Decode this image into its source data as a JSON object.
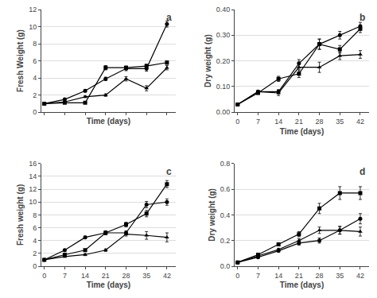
{
  "chart_data": [
    {
      "type": "line",
      "xlabel": "Time (days)",
      "ylabel": "Fresh Weight (g)",
      "x": [
        0,
        7,
        14,
        21,
        28,
        35,
        42
      ],
      "series": [
        {
          "marker": "circle",
          "color": "black",
          "values": [
            1.0,
            1.5,
            2.5,
            3.9,
            5.1,
            5.1,
            10.3
          ],
          "error": [
            0.05,
            0.1,
            0.15,
            0.2,
            0.25,
            0.3,
            0.35
          ]
        },
        {
          "marker": "square",
          "color": "black",
          "values": [
            1.0,
            1.1,
            1.1,
            5.2,
            5.2,
            5.4,
            5.8
          ],
          "error": [
            0.05,
            0.08,
            0.1,
            0.25,
            0.2,
            0.2,
            0.2
          ]
        },
        {
          "marker": "triangle",
          "color": "black",
          "values": [
            1.0,
            1.2,
            1.8,
            2.0,
            3.9,
            2.8,
            5.2
          ],
          "error": [
            0.05,
            0.08,
            0.1,
            0.15,
            0.25,
            0.3,
            0.25
          ]
        }
      ],
      "xlim": [
        -1,
        45
      ],
      "xticks": [
        0,
        7,
        14,
        21,
        28,
        35,
        42
      ],
      "ylim": [
        0,
        12
      ],
      "yticks": [
        0,
        2,
        4,
        6,
        8,
        10,
        12
      ],
      "tick_labels": "y",
      "grid": "y",
      "annotations": [
        {
          "text": "a"
        }
      ]
    },
    {
      "type": "line",
      "xlabel": "Time (days)",
      "ylabel": "Dry weight (g)",
      "x": [
        0,
        7,
        14,
        21,
        28,
        35,
        42
      ],
      "series": [
        {
          "marker": "circle",
          "color": "black",
          "values": [
            0.03,
            0.08,
            0.08,
            0.19,
            0.265,
            0.3,
            0.335
          ],
          "error": [
            0.003,
            0.005,
            0.008,
            0.015,
            0.02,
            0.015,
            0.015
          ]
        },
        {
          "marker": "square",
          "color": "black",
          "values": [
            0.03,
            0.075,
            0.13,
            0.15,
            0.265,
            0.245,
            0.325
          ],
          "error": [
            0.003,
            0.005,
            0.01,
            0.015,
            0.02,
            0.015,
            0.015
          ]
        },
        {
          "marker": "triangle",
          "color": "black",
          "values": [
            0.03,
            0.08,
            0.075,
            0.175,
            0.175,
            0.22,
            0.225
          ],
          "error": [
            0.003,
            0.005,
            0.01,
            0.02,
            0.02,
            0.015,
            0.015
          ]
        }
      ],
      "xlim": [
        -1,
        45
      ],
      "xticks": [
        0,
        7,
        14,
        21,
        28,
        35,
        42
      ],
      "ylim": [
        0.0,
        0.4
      ],
      "yticks": [
        {
          "value": 0.0,
          "label": "0.00"
        },
        {
          "value": 0.1,
          "label": "0.10"
        },
        {
          "value": 0.2,
          "label": "0.20"
        },
        {
          "value": 0.3,
          "label": "0.30"
        },
        {
          "value": 0.4,
          "label": "0.40"
        }
      ],
      "grid": "y",
      "annotations": [
        {
          "text": "b"
        }
      ]
    },
    {
      "type": "line",
      "xlabel": "Time (days)",
      "ylabel": "Fresh weight (g)",
      "x": [
        0,
        7,
        14,
        21,
        28,
        35,
        42
      ],
      "series": [
        {
          "marker": "circle",
          "color": "black",
          "values": [
            1.0,
            2.5,
            4.5,
            5.2,
            5.2,
            9.6,
            10.0
          ],
          "error": [
            0.05,
            0.15,
            0.2,
            0.25,
            0.3,
            0.5,
            0.5
          ]
        },
        {
          "marker": "square",
          "color": "black",
          "values": [
            1.0,
            1.8,
            2.5,
            5.2,
            6.5,
            8.2,
            12.8
          ],
          "error": [
            0.05,
            0.1,
            0.15,
            0.3,
            0.35,
            0.5,
            0.55
          ]
        },
        {
          "marker": "triangle",
          "color": "black",
          "values": [
            1.0,
            1.5,
            1.8,
            2.5,
            5.0,
            4.8,
            4.5
          ],
          "error": [
            0.05,
            0.1,
            0.15,
            0.2,
            0.3,
            0.6,
            0.7
          ]
        }
      ],
      "xlim": [
        -1,
        45
      ],
      "xticks": [
        0,
        7,
        14,
        21,
        28,
        35,
        42
      ],
      "ylim": [
        0,
        16
      ],
      "yticks": [
        0,
        2,
        4,
        6,
        8,
        10,
        12,
        14,
        16
      ],
      "grid": "y",
      "annotations": [
        {
          "text": "c"
        }
      ]
    },
    {
      "type": "line",
      "xlabel": "Time (days)",
      "ylabel": "Dry weight (g)",
      "x": [
        0,
        7,
        14,
        21,
        28,
        35,
        42
      ],
      "series": [
        {
          "marker": "circle",
          "color": "black",
          "values": [
            0.03,
            0.07,
            0.12,
            0.18,
            0.2,
            0.28,
            0.37
          ],
          "error": [
            0.003,
            0.005,
            0.01,
            0.015,
            0.02,
            0.03,
            0.04
          ]
        },
        {
          "marker": "square",
          "color": "black",
          "values": [
            0.03,
            0.09,
            0.17,
            0.25,
            0.45,
            0.57,
            0.57
          ],
          "error": [
            0.003,
            0.007,
            0.012,
            0.02,
            0.04,
            0.05,
            0.05
          ]
        },
        {
          "marker": "triangle",
          "color": "black",
          "values": [
            0.03,
            0.08,
            0.13,
            0.2,
            0.28,
            0.28,
            0.27
          ],
          "error": [
            0.003,
            0.005,
            0.01,
            0.015,
            0.025,
            0.03,
            0.035
          ]
        }
      ],
      "xlim": [
        -1,
        45
      ],
      "xticks": [
        0,
        7,
        14,
        21,
        28,
        35,
        42
      ],
      "ylim": [
        0,
        0.8
      ],
      "yticks": [
        {
          "value": 0.0,
          "label": "0.0"
        },
        0.2,
        0.4,
        0.6,
        0.8
      ],
      "grid": "y",
      "annotations": [
        {
          "text": "d"
        }
      ]
    }
  ]
}
